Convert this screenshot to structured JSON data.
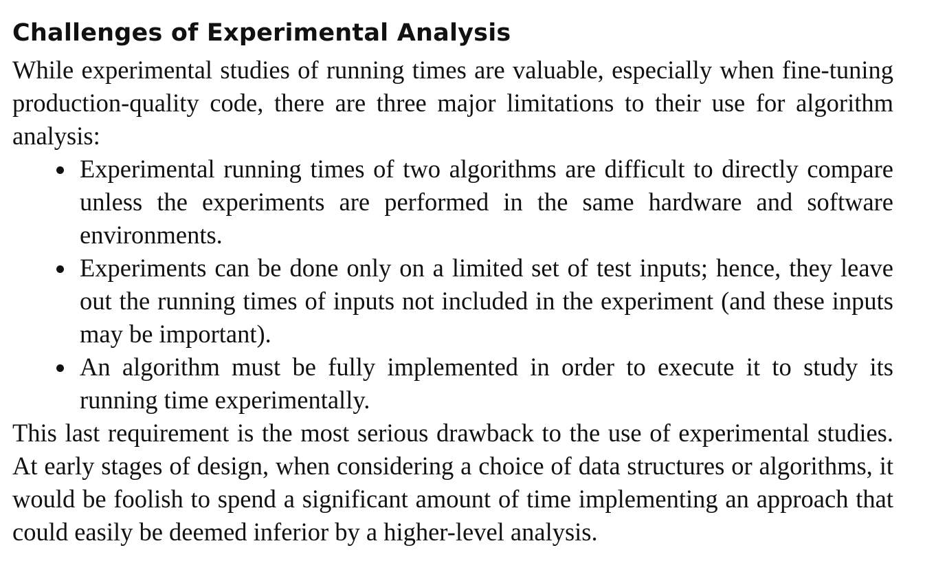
{
  "section": {
    "title": "Challenges of Experimental Analysis",
    "intro": "While experimental studies of running times are valuable, especially when fine-tuning production-quality code, there are three major limitations to their use for algorithm analysis:",
    "bullets": [
      "Experimental running times of two algorithms are difficult to directly compare unless the experiments are performed in the same hardware and software environments.",
      "Experiments can be done only on a limited set of test inputs; hence, they leave out the running times of inputs not included in the experiment (and these inputs may be important).",
      "An algorithm must be fully implemented in order to execute it to study its running time experimentally."
    ],
    "conclusion": "This last requirement is the most serious drawback to the use of experimental studies. At early stages of design, when considering a choice of data structures or algorithms, it would be foolish to spend a significant amount of time implementing an approach that could easily be deemed inferior by a higher-level analysis."
  }
}
